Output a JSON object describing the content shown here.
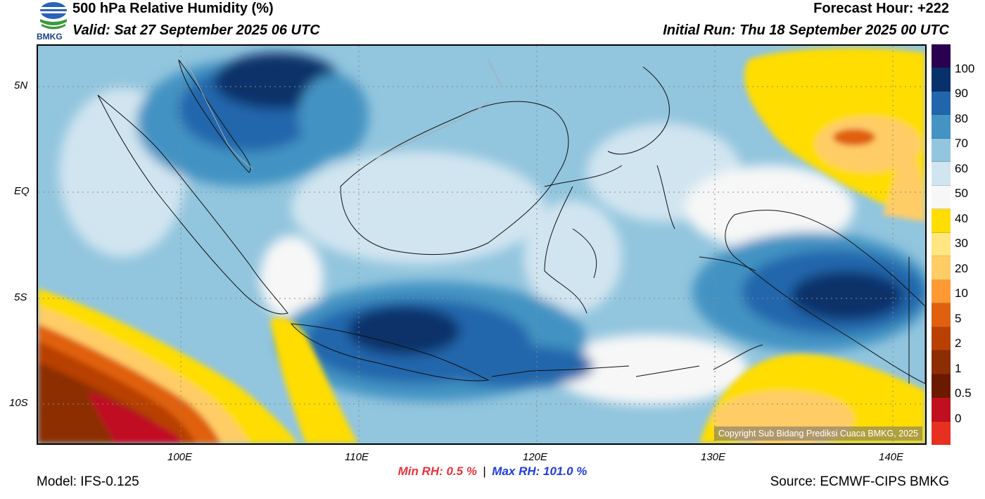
{
  "header": {
    "title": "500 hPa Relative Humidity (%)",
    "valid": "Valid: Sat 27 September 2025 06 UTC",
    "forecast_hour": "Forecast Hour: +222",
    "initial_run": "Initial Run: Thu 18 September 2025 00 UTC",
    "logo_text": "BMKG"
  },
  "map": {
    "lat_labels": [
      "5N",
      "EQ",
      "5S",
      "10S"
    ],
    "lon_labels": [
      "100E",
      "110E",
      "120E",
      "130E",
      "140E"
    ],
    "copyright": "Copyright Sub Bidang Prediksi Cuaca BMKG, 2025"
  },
  "colorbar": {
    "labels": [
      "100",
      "90",
      "80",
      "70",
      "60",
      "50",
      "40",
      "30",
      "20",
      "10",
      "5",
      "2",
      "1",
      "0.5",
      "0"
    ],
    "colors": [
      "#2a0050",
      "#08306b",
      "#2166ac",
      "#4393c3",
      "#92c5de",
      "#d1e5f0",
      "#f7f7f7",
      "#ffdd00",
      "#ffe680",
      "#ffcc66",
      "#ff9933",
      "#e06010",
      "#b84000",
      "#8c2d04",
      "#6b1a00",
      "#c01020",
      "#e83020"
    ]
  },
  "stats": {
    "min": "Min RH:   0.5 %",
    "separator": "|",
    "max": "Max RH: 101.0 %",
    "min_color": "#e8333d",
    "max_color": "#1f3ddf"
  },
  "footer": {
    "model": "Model: IFS-0.125",
    "source": "Source: ECMWF-CIPS BMKG"
  }
}
